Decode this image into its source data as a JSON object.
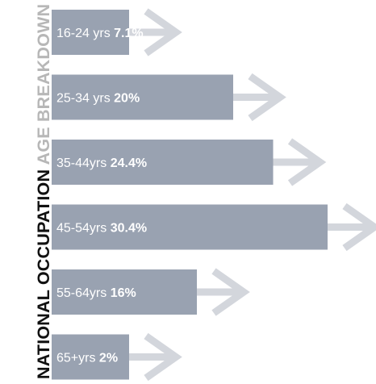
{
  "title": {
    "part1": "NATIONAL OCCUPATION",
    "part2": "AGE BREAKDOWN"
  },
  "colors": {
    "bar": "#99a2b1",
    "arrow": "#d3d6dc",
    "title_dark": "#111111",
    "title_light": "#b7b7b7"
  },
  "chart_data": {
    "type": "bar",
    "orientation": "horizontal",
    "title": "NATIONAL OCCUPATION AGE BREAKDOWN",
    "unit": "%",
    "categories": [
      "16-24 yrs",
      "25-34 yrs",
      "35-44yrs",
      "45-54yrs",
      "55-64yrs",
      "65+yrs"
    ],
    "values": [
      7.1,
      20,
      24.4,
      30.4,
      16,
      2
    ],
    "labels": [
      "7.1%",
      "20%",
      "24.4%",
      "30.4%",
      "16%",
      "2%"
    ]
  }
}
